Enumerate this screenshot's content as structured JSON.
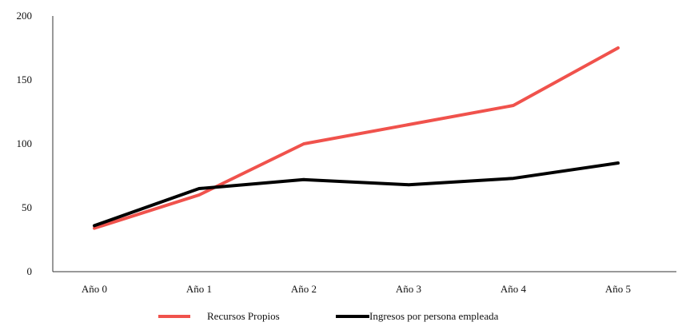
{
  "chart_data": {
    "type": "line",
    "categories": [
      "Año 0",
      "Año 1",
      "Año 2",
      "Año 3",
      "Año 4",
      "Año 5"
    ],
    "series": [
      {
        "name": "Recursos Propios",
        "values": [
          34,
          60,
          100,
          115,
          130,
          175
        ],
        "color": "#f0524c"
      },
      {
        "name": "Ingresos por persona empleada",
        "values": [
          36,
          65,
          72,
          68,
          73,
          85
        ],
        "color": "#000000"
      }
    ],
    "ylim": [
      0,
      200
    ],
    "yticks": [
      0,
      50,
      100,
      150,
      200
    ],
    "grid": false,
    "legend_position": "bottom",
    "title": "",
    "xlabel": "",
    "ylabel": ""
  }
}
